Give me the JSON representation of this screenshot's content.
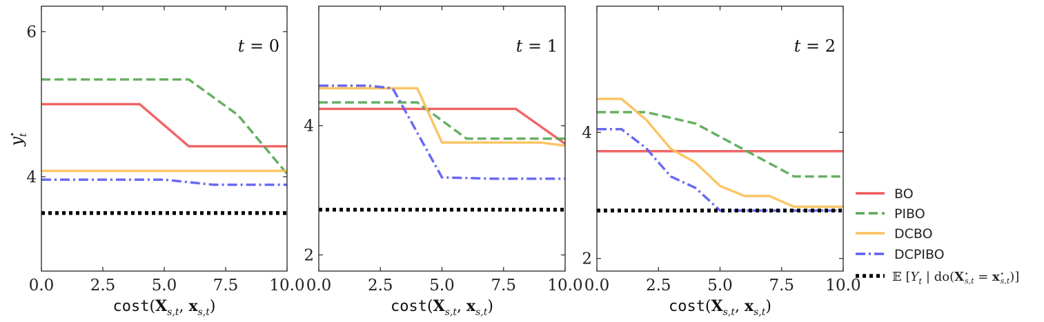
{
  "chart_data": {
    "type": "line",
    "shared": {
      "xlabel": "cost(X_{s,t}, x_{s,t})",
      "xlim": [
        0,
        10
      ],
      "xticks": [
        "0.0",
        "2.5",
        "5.0",
        "7.5",
        "10.0"
      ],
      "ylabel": "y*_t"
    },
    "panels": [
      {
        "annotation": "t = 0",
        "ylim": [
          2.7,
          6.35
        ],
        "yticks": [
          "4",
          "6"
        ],
        "series": [
          {
            "name": "BO",
            "color": "#f0595a",
            "style": "solid",
            "x": [
              0,
              4,
              6,
              10
            ],
            "y": [
              5.0,
              5.0,
              4.42,
              4.42
            ]
          },
          {
            "name": "PIBO",
            "color": "#5aa955",
            "style": "dashed",
            "x": [
              0,
              6,
              8,
              10
            ],
            "y": [
              5.34,
              5.34,
              4.85,
              4.04
            ]
          },
          {
            "name": "DCBO",
            "color": "#fbc15a",
            "style": "solid",
            "x": [
              0,
              10
            ],
            "y": [
              4.08,
              4.08
            ]
          },
          {
            "name": "DCPIBO",
            "color": "#5b5ff2",
            "style": "dashdot",
            "x": [
              0,
              5,
              7,
              10
            ],
            "y": [
              3.96,
              3.96,
              3.89,
              3.89
            ]
          },
          {
            "name": "E[Y_t | do(X*_{s,t} = x*_{s,t})]",
            "color": "#000000",
            "style": "dotted",
            "x": [
              0,
              10
            ],
            "y": [
              3.5,
              3.5
            ]
          }
        ]
      },
      {
        "annotation": "t = 1",
        "ylim": [
          1.75,
          5.85
        ],
        "yticks": [
          "2",
          "4"
        ],
        "series": [
          {
            "name": "BO",
            "color": "#f0595a",
            "style": "solid",
            "x": [
              0,
              8,
              10
            ],
            "y": [
              4.26,
              4.26,
              3.72
            ]
          },
          {
            "name": "PIBO",
            "color": "#5aa955",
            "style": "dashed",
            "x": [
              0,
              4,
              6,
              10
            ],
            "y": [
              4.36,
              4.36,
              3.8,
              3.8
            ]
          },
          {
            "name": "DCBO",
            "color": "#fbc15a",
            "style": "solid",
            "x": [
              0,
              4,
              5,
              9,
              10
            ],
            "y": [
              4.58,
              4.58,
              3.74,
              3.74,
              3.69
            ]
          },
          {
            "name": "DCPIBO",
            "color": "#5b5ff2",
            "style": "dashdot",
            "x": [
              0,
              2,
              3,
              5,
              7,
              10
            ],
            "y": [
              4.62,
              4.62,
              4.58,
              3.2,
              3.18,
              3.18
            ]
          },
          {
            "name": "E[Y_t | do(X*_{s,t} = x*_{s,t})]",
            "color": "#000000",
            "style": "dotted",
            "x": [
              0,
              10
            ],
            "y": [
              2.7,
              2.7
            ]
          }
        ]
      },
      {
        "annotation": "t = 2",
        "ylim": [
          1.8,
          6.0
        ],
        "yticks": [
          "2",
          "4"
        ],
        "series": [
          {
            "name": "BO",
            "color": "#f0595a",
            "style": "solid",
            "x": [
              0,
              10
            ],
            "y": [
              3.7,
              3.7
            ]
          },
          {
            "name": "PIBO",
            "color": "#5aa955",
            "style": "dashed",
            "x": [
              0,
              2,
              4,
              6,
              8,
              10
            ],
            "y": [
              4.32,
              4.32,
              4.14,
              3.72,
              3.3,
              3.3
            ]
          },
          {
            "name": "DCBO",
            "color": "#fbc15a",
            "style": "solid",
            "x": [
              0,
              1,
              2,
              3,
              4,
              5,
              6,
              7,
              8,
              10
            ],
            "y": [
              4.53,
              4.53,
              4.2,
              3.74,
              3.52,
              3.15,
              2.99,
              2.99,
              2.82,
              2.82
            ]
          },
          {
            "name": "DCPIBO",
            "color": "#5b5ff2",
            "style": "dashdot",
            "x": [
              0,
              1,
              2,
              3,
              4,
              5,
              6,
              10
            ],
            "y": [
              4.05,
              4.05,
              3.75,
              3.3,
              3.12,
              2.76,
              2.76,
              2.76
            ]
          },
          {
            "name": "E[Y_t | do(X*_{s,t} = x*_{s,t})]",
            "color": "#000000",
            "style": "dotted",
            "x": [
              0,
              10
            ],
            "y": [
              2.76,
              2.76
            ]
          }
        ]
      }
    ],
    "legend": {
      "placement": "right",
      "entries": [
        {
          "label": "BO",
          "color": "#f0595a",
          "style": "solid"
        },
        {
          "label": "PIBO",
          "color": "#5aa955",
          "style": "dashed"
        },
        {
          "label": "DCBO",
          "color": "#fbc15a",
          "style": "solid"
        },
        {
          "label": "DCPIBO",
          "color": "#5b5ff2",
          "style": "dashdot"
        },
        {
          "label": "E[Y_t | do(X*_{s,t} = x*_{s,t})]",
          "color": "#000000",
          "style": "dotted"
        }
      ]
    }
  }
}
